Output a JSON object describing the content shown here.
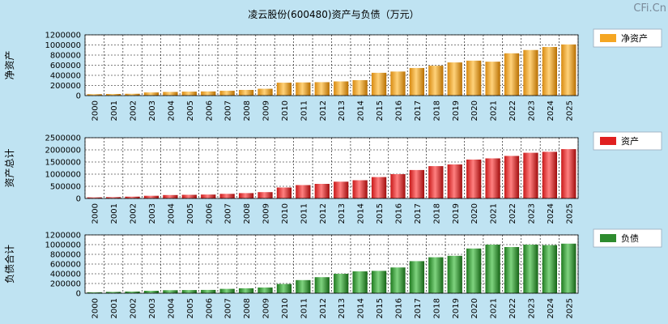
{
  "title": "凌云股份(600480)资产与负债（万元）",
  "watermark": "CFi.Cn",
  "colors": {
    "background": "#bfe3f2",
    "plot_bg": "#ffffff",
    "net_assets": "#f5a623",
    "assets": "#e02020",
    "liabilities": "#2e8b2e"
  },
  "chart_data": [
    {
      "type": "bar",
      "ylabel": "净资产",
      "legend": "净资产",
      "legend_placement": "right",
      "grid": true,
      "categories": [
        "2000",
        "2001",
        "2002",
        "2003",
        "2004",
        "2005",
        "2006",
        "2007",
        "2008",
        "2009",
        "2010",
        "2011",
        "2012",
        "2013",
        "2014",
        "2015",
        "2016",
        "2017",
        "2018",
        "2019",
        "2020",
        "2021",
        "2022",
        "2023",
        "2024",
        "2025"
      ],
      "values": [
        28000,
        32000,
        36000,
        62000,
        72000,
        78000,
        82000,
        95000,
        112000,
        135000,
        255000,
        260000,
        265000,
        280000,
        305000,
        450000,
        475000,
        545000,
        590000,
        655000,
        690000,
        670000,
        835000,
        900000,
        960000,
        1010000
      ],
      "yticks": [
        0,
        200000,
        400000,
        600000,
        800000,
        1000000,
        1200000
      ],
      "ylim": [
        0,
        1200000
      ]
    },
    {
      "type": "bar",
      "ylabel": "资产总计",
      "legend": "资产",
      "legend_placement": "right",
      "grid": true,
      "categories": [
        "2000",
        "2001",
        "2002",
        "2003",
        "2004",
        "2005",
        "2006",
        "2007",
        "2008",
        "2009",
        "2010",
        "2011",
        "2012",
        "2013",
        "2014",
        "2015",
        "2016",
        "2017",
        "2018",
        "2019",
        "2020",
        "2021",
        "2022",
        "2023",
        "2024",
        "2025"
      ],
      "values": [
        45000,
        55000,
        75000,
        110000,
        140000,
        150000,
        160000,
        190000,
        220000,
        260000,
        450000,
        550000,
        600000,
        690000,
        750000,
        880000,
        1000000,
        1170000,
        1330000,
        1400000,
        1600000,
        1650000,
        1750000,
        1880000,
        1920000,
        2030000
      ],
      "yticks": [
        0,
        500000,
        1000000,
        1500000,
        2000000,
        2500000
      ],
      "ylim": [
        0,
        2500000
      ]
    },
    {
      "type": "bar",
      "ylabel": "负债合计",
      "legend": "负债",
      "legend_placement": "right",
      "grid": true,
      "categories": [
        "2000",
        "2001",
        "2002",
        "2003",
        "2004",
        "2005",
        "2006",
        "2007",
        "2008",
        "2009",
        "2010",
        "2011",
        "2012",
        "2013",
        "2014",
        "2015",
        "2016",
        "2017",
        "2018",
        "2019",
        "2020",
        "2021",
        "2022",
        "2023",
        "2024",
        "2025"
      ],
      "values": [
        20000,
        28000,
        35000,
        50000,
        62000,
        65000,
        68000,
        90000,
        102000,
        118000,
        190000,
        270000,
        330000,
        400000,
        450000,
        460000,
        530000,
        660000,
        740000,
        770000,
        920000,
        1000000,
        950000,
        1000000,
        990000,
        1020000
      ],
      "yticks": [
        0,
        200000,
        400000,
        600000,
        800000,
        1000000,
        1200000
      ],
      "ylim": [
        0,
        1200000
      ]
    }
  ]
}
